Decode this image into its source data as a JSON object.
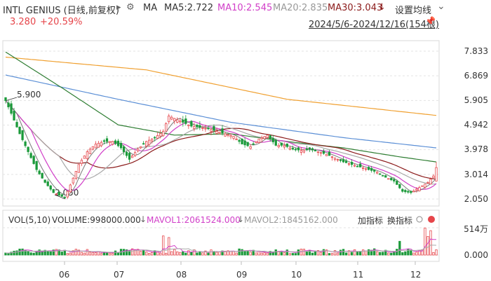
{
  "header": {
    "title": "INTL GENIUS (日线,前复权)",
    "play_icon": "▸",
    "settings_icon": "⚙",
    "ma_label": "MA",
    "ma5": "MA5:2.722",
    "ma10": "MA10:2.545",
    "ma20": "MA20:2.835",
    "ma30": "MA30:3.043",
    "ma30_arrow": "↓",
    "settings_ma_button": "设置均线",
    "chevron": "⌄",
    "price": "3.280",
    "change": "+20.59%",
    "range": "2024/5/6-2024/12/16(154根)",
    "pin_icon": "📌"
  },
  "price_axis": [
    "7.833",
    "6.869",
    "5.905",
    "4.942",
    "3.978",
    "3.014",
    "2.050"
  ],
  "annotations": {
    "high": "5.900",
    "low": "2.050"
  },
  "volume_header": {
    "vol_label": "VOL(5,10)",
    "volume": "VOLUME:998000.000",
    "arrow1": "↓",
    "mavol1": "MAVOL1:2061524.000",
    "arrow2": "↓",
    "mavol2": "MAVOL2:1845162.000",
    "add_indicator": "加指标",
    "switch_indicator": "换指标"
  },
  "volume_axis": [
    "514万",
    "0.000"
  ],
  "x_axis": [
    "06",
    "07",
    "08",
    "09",
    "10",
    "11",
    "12"
  ],
  "colors": {
    "up": "#e6454a",
    "down": "#1b9a3a",
    "ma5": "#7a7a7a",
    "ma10": "#d13fc8",
    "ma20": "#a8a8a8",
    "ma30": "#8b1a1a",
    "ma60": "#2e7d32",
    "ma120": "#5b8fd6",
    "ma250": "#f0a030"
  },
  "chart_data": {
    "type": "candlestick",
    "y_ticks": [
      7.833,
      6.869,
      5.905,
      4.942,
      3.978,
      3.014,
      2.05
    ],
    "ylim": [
      2.05,
      7.833
    ],
    "volume_ylim": [
      0,
      5140000
    ],
    "start": "2024/5/6",
    "end": "2024/12/16",
    "bars": 154,
    "last_close": 3.28,
    "change_pct": 20.59,
    "high": 5.9,
    "low": 2.05,
    "ma": {
      "ma5": 2.722,
      "ma10": 2.545,
      "ma20": 2.835,
      "ma30": 3.043
    },
    "volume": 998000,
    "mavol1": 2061524,
    "mavol2": 1845162,
    "month_labels": [
      "06",
      "07",
      "08",
      "09",
      "10",
      "11",
      "12"
    ],
    "anchors": [
      [
        0,
        5.9
      ],
      [
        2,
        5.4
      ],
      [
        5,
        4.6
      ],
      [
        8,
        3.9
      ],
      [
        11,
        3.2
      ],
      [
        14,
        2.7
      ],
      [
        17,
        2.3
      ],
      [
        19,
        2.2
      ],
      [
        21,
        2.1
      ],
      [
        23,
        2.6
      ],
      [
        26,
        3.4
      ],
      [
        29,
        3.9
      ],
      [
        32,
        4.2
      ],
      [
        35,
        4.3
      ],
      [
        38,
        4.3
      ],
      [
        41,
        4.05
      ],
      [
        44,
        3.6
      ],
      [
        47,
        4.0
      ],
      [
        50,
        4.3
      ],
      [
        53,
        4.45
      ],
      [
        56,
        4.7
      ],
      [
        58,
        5.3
      ],
      [
        60,
        5.2
      ],
      [
        63,
        5.05
      ],
      [
        66,
        4.9
      ],
      [
        69,
        4.85
      ],
      [
        72,
        4.8
      ],
      [
        75,
        4.7
      ],
      [
        78,
        4.6
      ],
      [
        81,
        4.5
      ],
      [
        84,
        4.2
      ],
      [
        87,
        4.1
      ],
      [
        90,
        4.4
      ],
      [
        93,
        4.55
      ],
      [
        96,
        4.15
      ],
      [
        99,
        4.15
      ],
      [
        102,
        4.0
      ],
      [
        105,
        3.95
      ],
      [
        108,
        4.0
      ],
      [
        111,
        3.9
      ],
      [
        114,
        3.8
      ],
      [
        117,
        3.65
      ],
      [
        120,
        3.5
      ],
      [
        123,
        3.4
      ],
      [
        126,
        3.3
      ],
      [
        129,
        3.2
      ],
      [
        132,
        3.1
      ],
      [
        135,
        2.9
      ],
      [
        138,
        2.75
      ],
      [
        141,
        2.35
      ],
      [
        144,
        2.3
      ],
      [
        147,
        2.5
      ],
      [
        150,
        2.7
      ],
      [
        152,
        2.95
      ],
      [
        153,
        3.28
      ]
    ],
    "ma250_line": [
      [
        0,
        7.6
      ],
      [
        50,
        7.1
      ],
      [
        100,
        5.95
      ],
      [
        153,
        5.32
      ]
    ],
    "ma120_line": [
      [
        0,
        6.9
      ],
      [
        40,
        5.95
      ],
      [
        80,
        5.05
      ],
      [
        120,
        4.45
      ],
      [
        153,
        4.05
      ]
    ],
    "ma60_line": [
      [
        0,
        7.8
      ],
      [
        20,
        6.4
      ],
      [
        40,
        4.95
      ],
      [
        60,
        4.55
      ],
      [
        80,
        4.6
      ],
      [
        100,
        4.3
      ],
      [
        120,
        4.05
      ],
      [
        140,
        3.7
      ],
      [
        153,
        3.5
      ]
    ]
  }
}
